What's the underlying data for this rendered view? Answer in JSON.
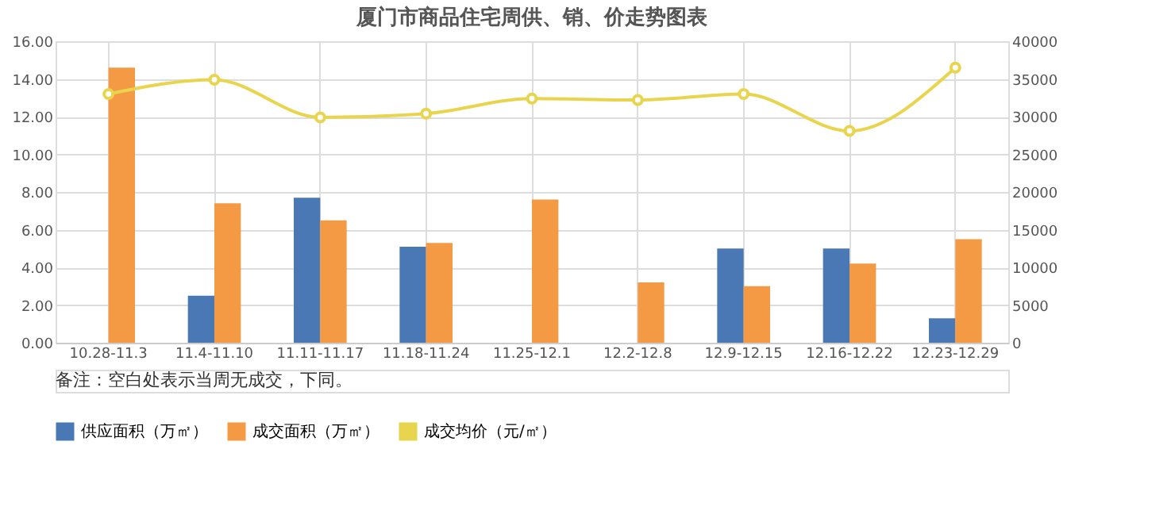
{
  "chart_data": {
    "type": "bar",
    "title": "厦门市商品住宅周供、销、价走势图表",
    "categories": [
      "10.28-11.3",
      "11.4-11.10",
      "11.11-11.17",
      "11.18-11.24",
      "11.25-12.1",
      "12.2-12.8",
      "12.9-12.15",
      "12.16-12.22",
      "12.23-12.29"
    ],
    "series": [
      {
        "name": "供应面积（万㎡）",
        "color": "#4a78b5",
        "values": [
          null,
          2.5,
          7.7,
          5.1,
          null,
          null,
          5.0,
          5.0,
          1.3
        ]
      },
      {
        "name": "成交面积（万㎡）",
        "color": "#f59a44",
        "values": [
          14.6,
          7.4,
          6.5,
          5.3,
          7.6,
          3.2,
          3.0,
          4.2,
          5.5
        ]
      },
      {
        "name": "成交均价（元/㎡）",
        "color": "#e8d44d",
        "type": "line",
        "axis": "y2",
        "marker": "circle",
        "values": [
          33000,
          34900,
          29900,
          30400,
          32400,
          32200,
          33000,
          28100,
          36500
        ]
      }
    ],
    "ylim": [
      0,
      16
    ],
    "yticks": [
      {
        "value": 0,
        "label": "0.00"
      },
      {
        "value": 2,
        "label": "2.00"
      },
      {
        "value": 4,
        "label": "4.00"
      },
      {
        "value": 6,
        "label": "6.00"
      },
      {
        "value": 8,
        "label": "8.00"
      },
      {
        "value": 10,
        "label": "10.00"
      },
      {
        "value": 12,
        "label": "12.00"
      },
      {
        "value": 14,
        "label": "14.00"
      },
      {
        "value": 16,
        "label": "16.00"
      }
    ],
    "y2lim": [
      0,
      40000
    ],
    "y2ticks": [
      0,
      5000,
      10000,
      15000,
      20000,
      25000,
      30000,
      35000,
      40000
    ],
    "grid": true,
    "legend": "bottom",
    "annotations": [
      "备注：空白处表示当周无成交，下同。"
    ]
  }
}
